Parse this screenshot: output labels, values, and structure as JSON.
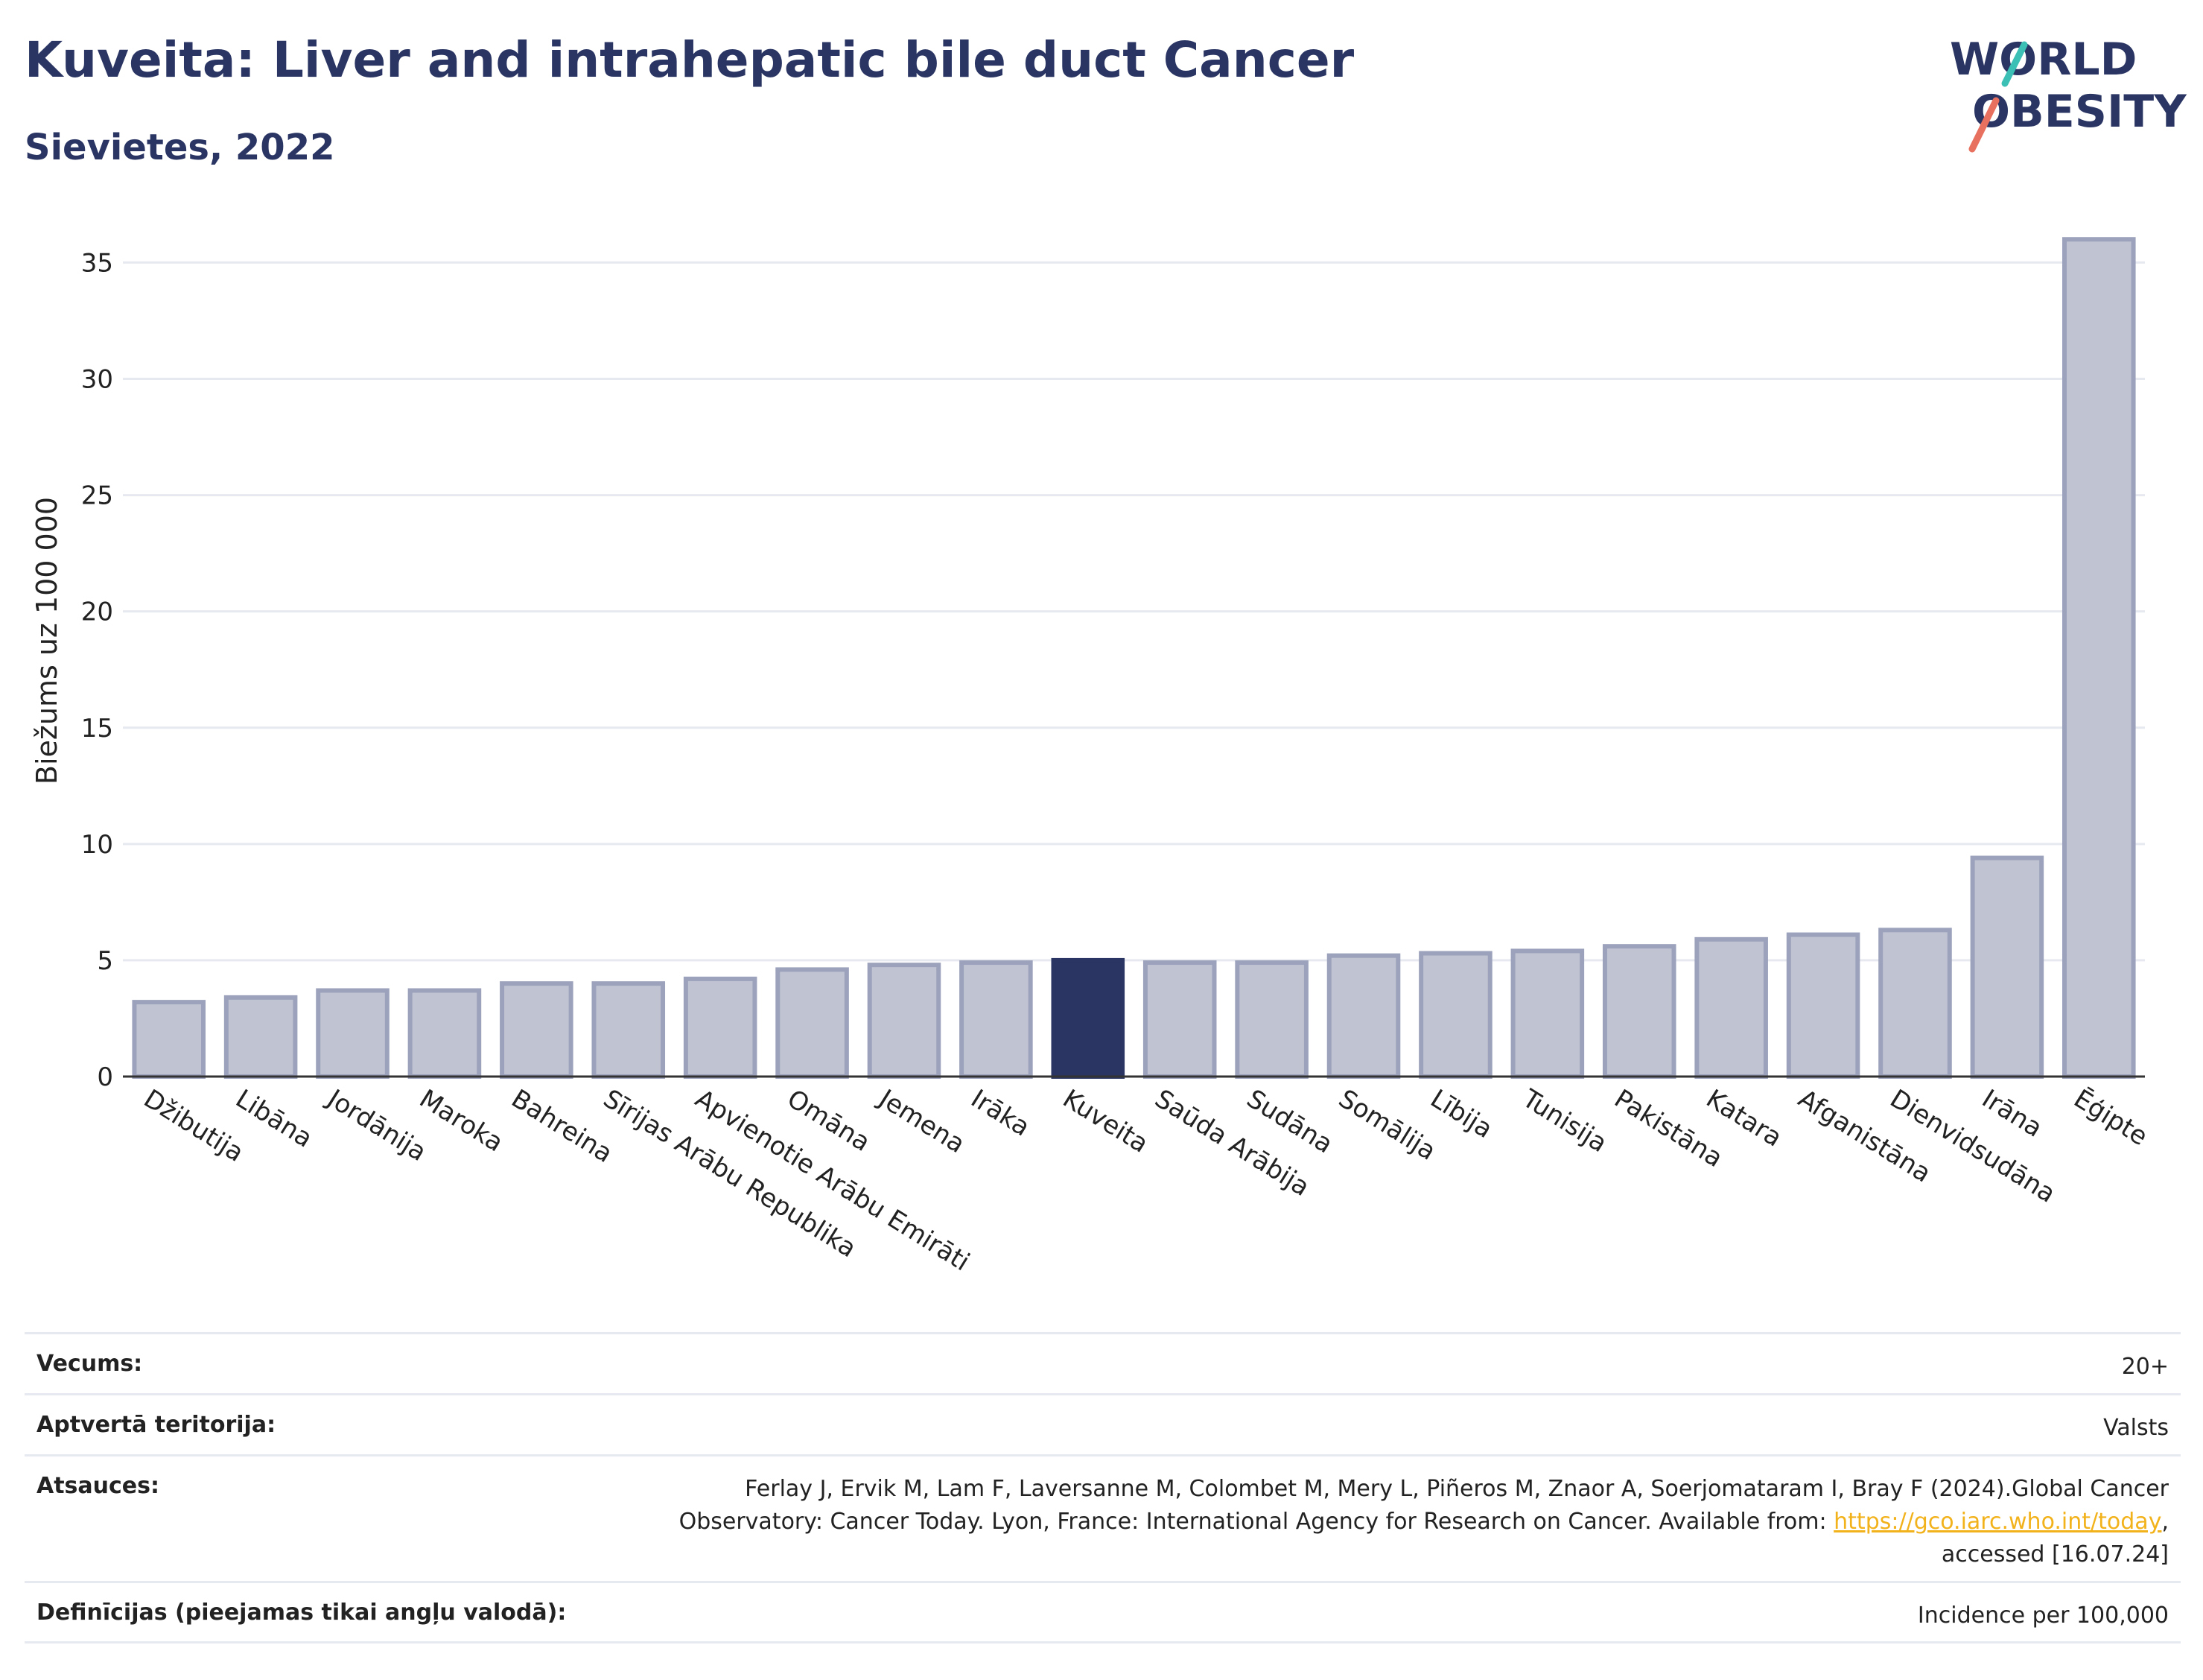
{
  "header": {
    "title": "Kuveita: Liver and intrahepatic bile duct Cancer",
    "subtitle": "Sievietes, 2022"
  },
  "logo": {
    "line1": "WORLD",
    "line2": "OBESITY"
  },
  "colors": {
    "bar_default": "#c0c4d2",
    "bar_default_border": "#9ca2bb",
    "bar_highlight": "#2a3563",
    "title": "#2a3563",
    "grid": "#e7e9f0",
    "link": "#f2b21b"
  },
  "chart_data": {
    "type": "bar",
    "ylabel": "Biežums uz 100 000",
    "ylim": [
      0,
      37
    ],
    "yticks": [
      0,
      5,
      10,
      15,
      20,
      25,
      30,
      35
    ],
    "grid": true,
    "highlight": "Kuveita",
    "categories": [
      "Džibutija",
      "Libāna",
      "Jordānija",
      "Maroka",
      "Bahreina",
      "Sīrijas Arābu Republika",
      "Apvienotie Arābu Emirāti",
      "Omāna",
      "Jemena",
      "Irāka",
      "Kuveita",
      "Saūda Arābija",
      "Sudāna",
      "Somālija",
      "Lībija",
      "Tunisija",
      "Pakistāna",
      "Katara",
      "Afganistāna",
      "Dienvidsudāna",
      "Irāna",
      "Ēģipte"
    ],
    "values": [
      3.2,
      3.4,
      3.7,
      3.7,
      4.0,
      4.0,
      4.2,
      4.6,
      4.8,
      4.9,
      5.0,
      4.9,
      4.9,
      5.2,
      5.3,
      5.4,
      5.6,
      5.9,
      6.1,
      6.3,
      9.4,
      36.0
    ]
  },
  "info": {
    "age_label": "Vecums:",
    "age_value": "20+",
    "territory_label": "Aptvertā teritorija:",
    "territory_value": "Valsts",
    "refs_label": "Atsauces:",
    "refs_line1": "Ferlay J, Ervik M, Lam F, Laversanne M, Colombet M, Mery L, Piñeros M, Znaor A, Soerjomataram I, Bray F (2024).Global Cancer",
    "refs_line2_pre": "Observatory: Cancer Today. Lyon, France: International Agency for Research on Cancer. Available from: ",
    "refs_link": "https://gco.iarc.who.int/today",
    "refs_line2_post": ",",
    "refs_line3": "accessed [16.07.24]",
    "defs_label": "Definīcijas (pieejamas tikai angļu valodā):",
    "defs_value": "Incidence per 100,000"
  }
}
